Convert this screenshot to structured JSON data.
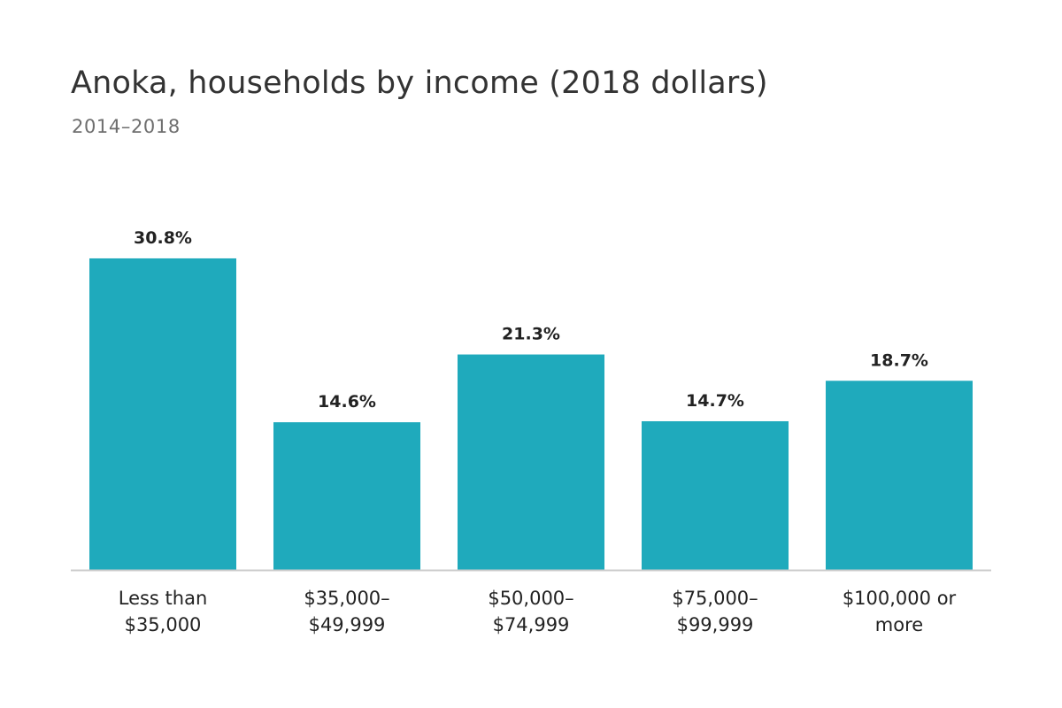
{
  "chart_data": {
    "type": "bar",
    "title": "Anoka, households by income (2018 dollars)",
    "subtitle": "2014–2018",
    "categories": [
      "Less than $35,000",
      "$35,000–$49,999",
      "$50,000–$74,999",
      "$75,000–$99,999",
      "$100,000 or more"
    ],
    "category_lines": [
      [
        "Less than",
        "$35,000"
      ],
      [
        "$35,000–",
        "$49,999"
      ],
      [
        "$50,000–",
        "$74,999"
      ],
      [
        "$75,000–",
        "$99,999"
      ],
      [
        "$100,000 or",
        "more"
      ]
    ],
    "values": [
      30.8,
      14.6,
      21.3,
      14.7,
      18.7
    ],
    "value_labels": [
      "30.8%",
      "14.6%",
      "21.3%",
      "14.7%",
      "18.7%"
    ],
    "ylim": [
      0,
      31
    ],
    "bar_color": "#1faabc",
    "axis_color": "#cccccc",
    "grid": false,
    "legend": "none"
  }
}
